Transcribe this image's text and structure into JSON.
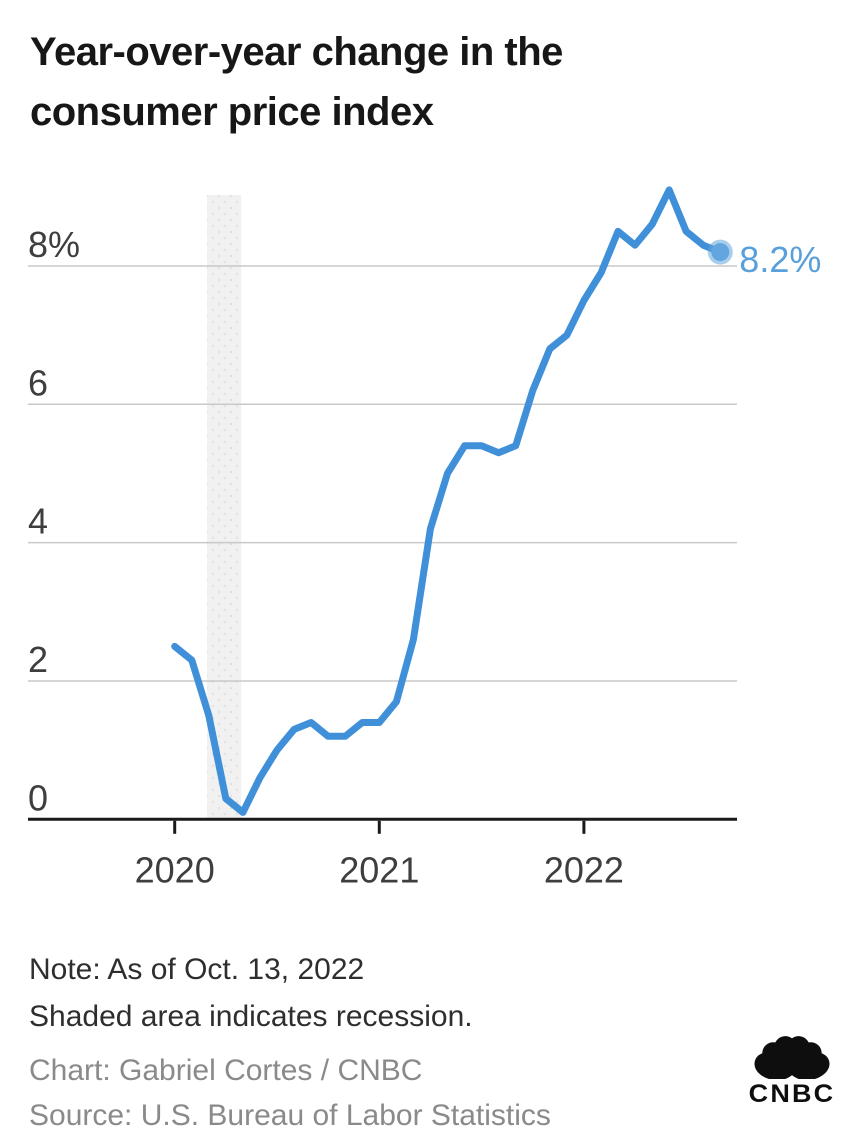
{
  "header": {
    "title_line1": "Year-over-year change in the",
    "title_line2": "consumer price index"
  },
  "chart_data": {
    "type": "line",
    "title": "Year-over-year change in the consumer price index",
    "unit": "percent",
    "x": [
      "2020-01",
      "2020-02",
      "2020-03",
      "2020-04",
      "2020-05",
      "2020-06",
      "2020-07",
      "2020-08",
      "2020-09",
      "2020-10",
      "2020-11",
      "2020-12",
      "2021-01",
      "2021-02",
      "2021-03",
      "2021-04",
      "2021-05",
      "2021-06",
      "2021-07",
      "2021-08",
      "2021-09",
      "2021-10",
      "2021-11",
      "2021-12",
      "2022-01",
      "2022-02",
      "2022-03",
      "2022-04",
      "2022-05",
      "2022-06",
      "2022-07",
      "2022-08",
      "2022-09"
    ],
    "values": [
      2.5,
      2.3,
      1.5,
      0.3,
      0.1,
      0.6,
      1.0,
      1.3,
      1.4,
      1.2,
      1.2,
      1.4,
      1.4,
      1.7,
      2.6,
      4.2,
      5.0,
      5.4,
      5.4,
      5.3,
      5.4,
      6.2,
      6.8,
      7.0,
      7.5,
      7.9,
      8.5,
      8.3,
      8.6,
      9.1,
      8.5,
      8.3,
      8.2
    ],
    "ylim": [
      0,
      9.1
    ],
    "grid": true,
    "legend": "none",
    "y_ticks": [
      {
        "value": 8,
        "label": "8%"
      },
      {
        "value": 6,
        "label": "6"
      },
      {
        "value": 4,
        "label": "4"
      },
      {
        "value": 2,
        "label": "2"
      },
      {
        "value": 0,
        "label": "0"
      }
    ],
    "x_ticks": [
      {
        "index": 0,
        "label": "2020"
      },
      {
        "index": 12,
        "label": "2021"
      },
      {
        "index": 24,
        "label": "2022"
      }
    ],
    "recession_band": {
      "start_index": 1.9,
      "end_index": 3.9,
      "meaning": "recession"
    },
    "end_label": "8.2%",
    "colors": {
      "line": "#3F90D8",
      "dot": "#63A5DF",
      "annotation": "#58A0DB",
      "grid": "#C9C9C9",
      "axis": "#1A1A1A",
      "band": "#F1F1F1",
      "band_dot": "#E2E2E2",
      "axis_label": "#3E3E3E",
      "title": "#171717",
      "note": "#2E2E2E",
      "credit": "#8A8A8A",
      "logo": "#0E0E0E"
    }
  },
  "notes": {
    "line1": "Note: As of Oct. 13, 2022",
    "line2": "Shaded area indicates recession."
  },
  "credits": {
    "chart": "Chart: Gabriel Cortes / CNBC",
    "source": "Source: U.S. Bureau of Labor Statistics"
  },
  "logo": {
    "wordmark": "CNBC"
  }
}
